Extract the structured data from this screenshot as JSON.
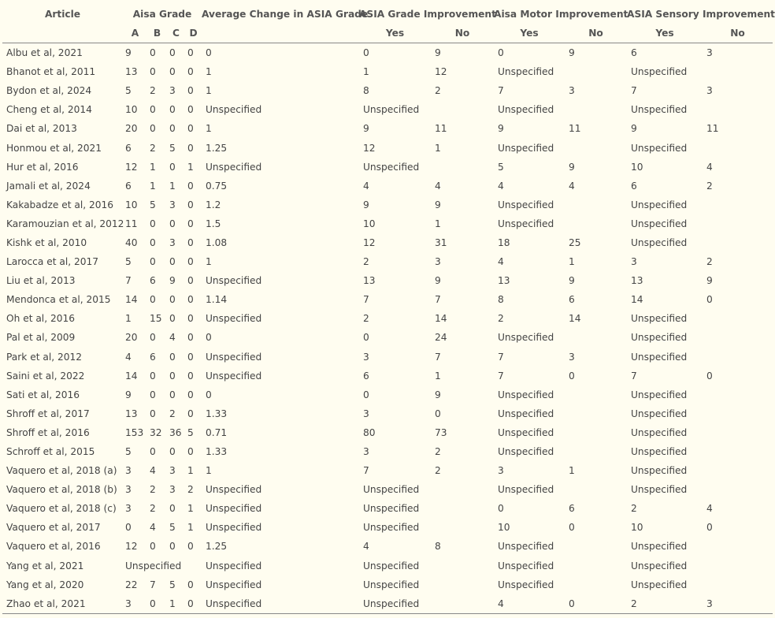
{
  "headers": {
    "article": "Article",
    "aisa_grade": "Aisa Grade",
    "avg_change": "Average Change in ASIA Grade",
    "grade_improvement": "ASIA Grade Improvement",
    "motor_improvement": "Aisa Motor Improvement",
    "sensory_improvement": "ASIA Sensory Improvement",
    "a": "A",
    "b": "B",
    "c": "C",
    "d": "D",
    "yes": "Yes",
    "no": "No"
  },
  "rows": [
    [
      "Albu et al, 2021",
      "9",
      "0",
      "0",
      "0",
      "0",
      "0",
      "9",
      "0",
      "9",
      "6",
      "3"
    ],
    [
      "Bhanot et al, 2011",
      "13",
      "0",
      "0",
      "0",
      "1",
      "1",
      "12",
      "Unspecified",
      "",
      "Unspecified",
      ""
    ],
    [
      "Bydon et al, 2024",
      "5",
      "2",
      "3",
      "0",
      "1",
      "8",
      "2",
      "7",
      "3",
      "7",
      "3"
    ],
    [
      "Cheng et al, 2014",
      "10",
      "0",
      "0",
      "0",
      "Unspecified",
      "Unspecified",
      "",
      "Unspecified",
      "",
      "Unspecified",
      ""
    ],
    [
      "Dai et al, 2013",
      "20",
      "0",
      "0",
      "0",
      "1",
      "9",
      "11",
      "9",
      "11",
      "9",
      "11"
    ],
    [
      "Honmou et al, 2021",
      "6",
      "2",
      "5",
      "0",
      "1.25",
      "12",
      "1",
      "Unspecified",
      "",
      "Unspecified",
      ""
    ],
    [
      "Hur et al, 2016",
      "12",
      "1",
      "0",
      "1",
      "Unspecified",
      "Unspecified",
      "",
      "5",
      "9",
      "10",
      "4"
    ],
    [
      "Jamali et al, 2024",
      "6",
      "1",
      "1",
      "0",
      "0.75",
      "4",
      "4",
      "4",
      "4",
      "6",
      "2"
    ],
    [
      "Kakabadze et al, 2016",
      "10",
      "5",
      "3",
      "0",
      "1.2",
      "9",
      "9",
      "Unspecified",
      "",
      "Unspecified",
      ""
    ],
    [
      "Karamouzian et al, 2012",
      "11",
      "0",
      "0",
      "0",
      "1.5",
      "10",
      "1",
      "Unspecified",
      "",
      "Unspecified",
      ""
    ],
    [
      "Kishk et al, 2010",
      "40",
      "0",
      "3",
      "0",
      "1.08",
      "12",
      "31",
      "18",
      "25",
      "Unspecified",
      ""
    ],
    [
      "Larocca et al, 2017",
      "5",
      "0",
      "0",
      "0",
      "1",
      "2",
      "3",
      "4",
      "1",
      "3",
      "2"
    ],
    [
      "Liu et al, 2013",
      "7",
      "6",
      "9",
      "0",
      "Unspecified",
      "13",
      "9",
      "13",
      "9",
      "13",
      "9"
    ],
    [
      "Mendonca et al, 2015",
      "14",
      "0",
      "0",
      "0",
      "1.14",
      "7",
      "7",
      "8",
      "6",
      "14",
      "0"
    ],
    [
      "Oh et al, 2016",
      "1",
      "15",
      "0",
      "0",
      "Unspecified",
      "2",
      "14",
      "2",
      "14",
      "Unspecified",
      ""
    ],
    [
      "Pal et al, 2009",
      "20",
      "0",
      "4",
      "0",
      "0",
      "0",
      "24",
      "Unspecified",
      "",
      "Unspecified",
      ""
    ],
    [
      "Park et al, 2012",
      "4",
      "6",
      "0",
      "0",
      "Unspecified",
      "3",
      "7",
      "7",
      "3",
      "Unspecified",
      ""
    ],
    [
      "Saini et al, 2022",
      "14",
      "0",
      "0",
      "0",
      "Unspecified",
      "6",
      "1",
      "7",
      "0",
      "7",
      "0"
    ],
    [
      "Sati et al, 2016",
      "9",
      "0",
      "0",
      "0",
      "0",
      "0",
      "9",
      "Unspecified",
      "",
      "Unspecified",
      ""
    ],
    [
      "Shroff et al, 2017",
      "13",
      "0",
      "2",
      "0",
      "1.33",
      "3",
      "0",
      "Unspecified",
      "",
      "Unspecified",
      ""
    ],
    [
      "Shroff et al, 2016",
      "153",
      "32",
      "36",
      "5",
      "0.71",
      "80",
      "73",
      "Unspecified",
      "",
      "Unspecified",
      ""
    ],
    [
      "Schroff et al, 2015",
      "5",
      "0",
      "0",
      "0",
      "1.33",
      "3",
      "2",
      "Unspecified",
      "",
      "Unspecified",
      ""
    ],
    [
      "Vaquero et al, 2018 (a)",
      "3",
      "4",
      "3",
      "1",
      "1",
      "7",
      "2",
      "3",
      "1",
      "Unspecified",
      ""
    ],
    [
      "Vaquero et al, 2018 (b)",
      "3",
      "2",
      "3",
      "2",
      "Unspecified",
      "Unspecified",
      "",
      "Unspecified",
      "",
      "Unspecified",
      ""
    ],
    [
      "Vaquero et al, 2018 (c)",
      "3",
      "2",
      "0",
      "1",
      "Unspecified",
      "Unspecified",
      "",
      "0",
      "6",
      "2",
      "4"
    ],
    [
      "Vaquero et al, 2017",
      "0",
      "4",
      "5",
      "1",
      "Unspecified",
      "Unspecified",
      "",
      "10",
      "0",
      "10",
      "0"
    ],
    [
      "Vaquero et al, 2016",
      "12",
      "0",
      "0",
      "0",
      "1.25",
      "4",
      "8",
      "Unspecified",
      "",
      "Unspecified",
      ""
    ],
    [
      "Yang et al, 2021",
      "Unspecified",
      null,
      null,
      null,
      "Unspecified",
      "Unspecified",
      "",
      "Unspecified",
      "",
      "Unspecified",
      ""
    ],
    [
      "Yang et al, 2020",
      "22",
      "7",
      "5",
      "0",
      "Unspecified",
      "Unspecified",
      "",
      "Unspecified",
      "",
      "Unspecified",
      ""
    ],
    [
      "Zhao et al, 2021",
      "3",
      "0",
      "1",
      "0",
      "Unspecified",
      "Unspecified",
      "",
      "4",
      "0",
      "2",
      "3"
    ]
  ]
}
